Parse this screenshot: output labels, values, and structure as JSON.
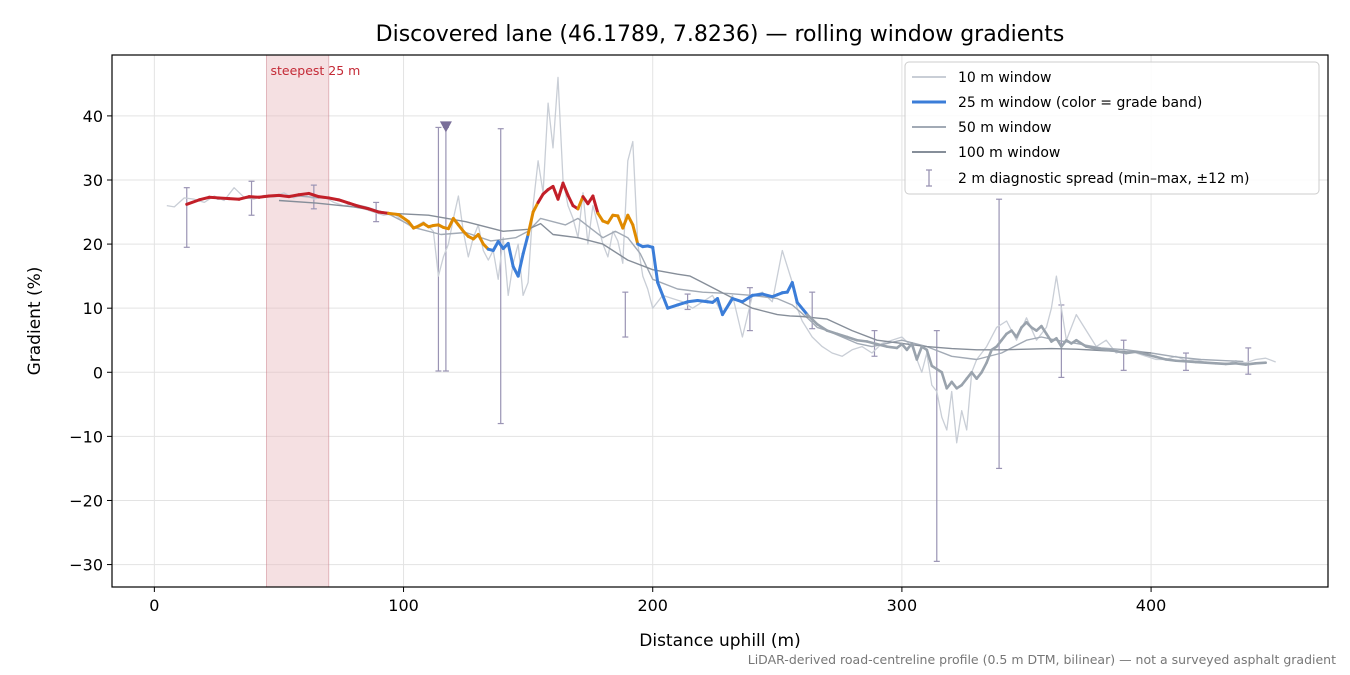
{
  "chart_data": {
    "type": "line",
    "title": "Discovered lane (46.1789, 7.8236) — rolling window gradients",
    "xlabel": "Distance uphill (m)",
    "ylabel": "Gradient (%)",
    "xlim": [
      -17,
      471
    ],
    "ylim": [
      -33.5,
      49.5
    ],
    "xticks": [
      0,
      100,
      200,
      300,
      400
    ],
    "yticks": [
      -30,
      -20,
      -10,
      0,
      10,
      20,
      30,
      40
    ],
    "xtick_labels": [
      "0",
      "100",
      "200",
      "300",
      "400"
    ],
    "ytick_labels": [
      "−30",
      "−20",
      "−10",
      "0",
      "10",
      "20",
      "30",
      "40"
    ],
    "grid": true,
    "legend_position": "top-right",
    "footnote": "LiDAR-derived road-centreline profile (0.5 m DTM, bilinear) — not a surveyed asphalt gradient",
    "highlight": {
      "label": "steepest 25 m",
      "x_start": 45,
      "x_end": 70,
      "color": "#e8b4bb"
    },
    "marker": {
      "x": 117,
      "y": 38.2,
      "shape": "triangle-down",
      "color": "#7a6f9a"
    },
    "grade_band_colors": {
      "high": "#c21f28",
      "mid": "#e08a00",
      "low": "#3b7dd8",
      "flat": "#9aa3ad"
    },
    "series": [
      {
        "name": "10 m window",
        "color": "#c9ced6",
        "x": [
          5,
          8,
          12,
          16,
          20,
          24,
          28,
          32,
          36,
          40,
          44,
          48,
          52,
          56,
          60,
          64,
          68,
          72,
          76,
          80,
          84,
          88,
          92,
          96,
          100,
          104,
          108,
          112,
          114,
          116,
          118,
          120,
          122,
          124,
          126,
          128,
          130,
          132,
          134,
          136,
          138,
          140,
          142,
          144,
          146,
          148,
          150,
          152,
          154,
          156,
          158,
          160,
          162,
          164,
          166,
          168,
          170,
          172,
          174,
          176,
          178,
          180,
          182,
          184,
          186,
          188,
          190,
          192,
          194,
          196,
          198,
          200,
          204,
          208,
          212,
          216,
          220,
          224,
          228,
          232,
          236,
          240,
          244,
          248,
          252,
          256,
          258,
          260,
          264,
          268,
          272,
          276,
          280,
          284,
          288,
          292,
          296,
          300,
          304,
          306,
          308,
          310,
          312,
          314,
          316,
          318,
          320,
          322,
          324,
          326,
          328,
          330,
          334,
          338,
          342,
          346,
          350,
          354,
          358,
          360,
          362,
          366,
          370,
          374,
          378,
          382,
          386,
          390,
          394,
          398,
          402,
          406,
          410,
          414,
          418,
          422,
          426,
          430,
          434,
          438,
          442,
          446,
          450
        ],
        "values": [
          26.0,
          25.8,
          27.2,
          27.0,
          26.5,
          27.5,
          26.8,
          28.8,
          27.3,
          27.0,
          27.6,
          27.4,
          28.0,
          27.2,
          27.8,
          27.0,
          27.4,
          26.5,
          26.0,
          26.2,
          25.5,
          25.0,
          24.5,
          24.8,
          23.5,
          22.5,
          23.5,
          22.0,
          15.0,
          18.0,
          20.0,
          24.0,
          27.5,
          22.0,
          18.0,
          21.0,
          23.0,
          19.0,
          17.5,
          19.0,
          14.5,
          21.0,
          12.0,
          17.0,
          20.0,
          12.0,
          14.0,
          26.0,
          33.0,
          28.0,
          42.0,
          35.0,
          46.0,
          30.0,
          26.0,
          24.0,
          21.0,
          28.0,
          20.0,
          26.0,
          23.0,
          20.0,
          18.0,
          22.0,
          20.5,
          17.0,
          33.0,
          36.0,
          20.0,
          15.0,
          13.0,
          10.0,
          12.0,
          11.5,
          11.0,
          10.0,
          11.0,
          12.0,
          9.0,
          12.0,
          5.5,
          12.0,
          12.5,
          11.0,
          19.0,
          14.0,
          10.0,
          8.0,
          5.5,
          4.0,
          3.0,
          2.5,
          3.5,
          4.0,
          3.0,
          4.5,
          5.0,
          5.5,
          4.0,
          2.0,
          0.0,
          3.0,
          -2.0,
          -3.0,
          -7.0,
          -9.0,
          -3.0,
          -11.0,
          -6.0,
          -9.0,
          0.0,
          2.0,
          4.0,
          7.0,
          8.0,
          5.0,
          8.5,
          5.0,
          7.0,
          10.0,
          15.0,
          5.0,
          9.0,
          6.5,
          4.0,
          5.0,
          3.0,
          3.5,
          3.0,
          2.5,
          2.0,
          2.0,
          2.5,
          1.8,
          2.0,
          1.5,
          1.5,
          1.2,
          1.8,
          1.5,
          2.0,
          2.2,
          1.6
        ]
      },
      {
        "name": "25 m window (color = grade band)",
        "color": "#3b7dd8",
        "x": [
          13,
          18,
          22,
          26,
          30,
          34,
          38,
          42,
          46,
          50,
          54,
          58,
          62,
          66,
          70,
          74,
          78,
          82,
          86,
          90,
          94,
          98,
          102,
          104,
          106,
          108,
          110,
          112,
          114,
          116,
          118,
          120,
          122,
          124,
          126,
          128,
          130,
          132,
          134,
          136,
          138,
          140,
          142,
          144,
          146,
          148,
          150,
          152,
          154,
          156,
          158,
          160,
          162,
          164,
          166,
          168,
          170,
          172,
          174,
          176,
          178,
          180,
          182,
          184,
          186,
          188,
          190,
          192,
          194,
          196,
          198,
          200,
          202,
          206,
          210,
          214,
          218,
          222,
          224,
          226,
          228,
          232,
          236,
          240,
          244,
          248,
          250,
          252,
          254,
          256,
          258,
          262,
          266,
          270,
          274,
          278,
          282,
          286,
          290,
          294,
          298,
          300,
          302,
          304,
          306,
          308,
          310,
          312,
          314,
          316,
          318,
          320,
          322,
          324,
          326,
          328,
          330,
          332,
          334,
          336,
          338,
          340,
          342,
          344,
          346,
          348,
          350,
          352,
          354,
          356,
          358,
          360,
          362,
          364,
          366,
          368,
          370,
          374,
          378,
          382,
          386,
          390,
          394,
          398,
          402,
          406,
          410,
          414,
          418,
          422,
          426,
          430,
          434,
          438,
          442,
          446
        ],
        "values": [
          26.2,
          26.9,
          27.3,
          27.2,
          27.1,
          27.0,
          27.4,
          27.3,
          27.5,
          27.6,
          27.4,
          27.7,
          27.9,
          27.4,
          27.2,
          26.9,
          26.4,
          25.9,
          25.5,
          25.0,
          24.8,
          24.6,
          23.5,
          22.5,
          22.8,
          23.2,
          22.7,
          22.9,
          23.0,
          22.6,
          22.4,
          24.0,
          23.0,
          22.0,
          21.2,
          20.8,
          21.5,
          20.0,
          19.2,
          19.0,
          20.4,
          19.3,
          20.1,
          16.5,
          15.0,
          18.5,
          21.5,
          25.0,
          26.5,
          27.8,
          28.5,
          29.0,
          27.0,
          29.5,
          27.6,
          26.0,
          25.5,
          27.4,
          26.3,
          27.5,
          24.8,
          23.6,
          23.3,
          24.5,
          24.4,
          22.5,
          24.5,
          23.0,
          20.0,
          19.6,
          19.7,
          19.5,
          14.0,
          10.0,
          10.5,
          11.0,
          11.2,
          11.0,
          10.9,
          11.5,
          9.0,
          11.5,
          11.0,
          12.0,
          12.2,
          11.8,
          12.1,
          12.4,
          12.5,
          14.0,
          10.9,
          9.0,
          7.5,
          6.5,
          6.0,
          5.5,
          5.0,
          4.8,
          4.4,
          4.0,
          3.8,
          4.4,
          3.5,
          4.5,
          2.0,
          4.0,
          3.5,
          1.0,
          0.5,
          0.0,
          -2.5,
          -1.5,
          -2.5,
          -2.0,
          -1.0,
          0.0,
          -1.0,
          0.0,
          1.5,
          3.5,
          4.0,
          5.0,
          6.0,
          6.5,
          5.5,
          7.0,
          7.8,
          7.0,
          6.5,
          7.2,
          6.0,
          4.8,
          5.3,
          4.0,
          5.0,
          4.5,
          5.0,
          4.0,
          3.7,
          3.5,
          3.3,
          3.0,
          3.2,
          2.8,
          2.4,
          2.0,
          1.8,
          1.7,
          1.6,
          1.5,
          1.4,
          1.3,
          1.4,
          1.2,
          1.4,
          1.5
        ],
        "band_labels": [
          "high",
          "high",
          "high",
          "high",
          "high",
          "high",
          "high",
          "high",
          "high",
          "high",
          "high",
          "high",
          "high",
          "high",
          "high",
          "high",
          "high",
          "high",
          "high",
          "high",
          "mid",
          "mid",
          "mid",
          "mid",
          "mid",
          "mid",
          "mid",
          "mid",
          "mid",
          "mid",
          "mid",
          "mid",
          "mid",
          "mid",
          "mid",
          "mid",
          "mid",
          "mid",
          "low",
          "low",
          "low",
          "low",
          "low",
          "low",
          "low",
          "low",
          "mid",
          "mid",
          "high",
          "high",
          "high",
          "high",
          "high",
          "high",
          "high",
          "high",
          "mid",
          "high",
          "high",
          "high",
          "mid",
          "mid",
          "mid",
          "mid",
          "mid",
          "mid",
          "mid",
          "mid",
          "low",
          "low",
          "low",
          "low",
          "low",
          "low",
          "low",
          "low",
          "low",
          "low",
          "low",
          "low",
          "low",
          "low",
          "low",
          "low",
          "low",
          "low",
          "low",
          "low",
          "low",
          "low",
          "low",
          "flat",
          "flat",
          "flat",
          "flat",
          "flat",
          "flat",
          "flat",
          "flat",
          "flat",
          "flat",
          "flat",
          "flat",
          "flat",
          "flat",
          "flat",
          "flat",
          "flat",
          "flat",
          "flat",
          "flat",
          "flat",
          "flat",
          "flat",
          "flat",
          "flat",
          "flat",
          "flat",
          "flat",
          "flat",
          "flat",
          "flat",
          "flat",
          "flat",
          "flat",
          "flat",
          "flat",
          "flat",
          "flat",
          "flat",
          "flat",
          "flat",
          "flat",
          "flat",
          "flat",
          "flat",
          "flat",
          "flat",
          "flat",
          "flat",
          "flat",
          "flat",
          "flat",
          "flat",
          "flat",
          "flat",
          "flat",
          "flat",
          "flat",
          "flat",
          "flat",
          "flat",
          "flat",
          "flat",
          "flat",
          "flat",
          "flat",
          "flat"
        ]
      },
      {
        "name": "50 m window",
        "color": "#a2aab5",
        "x": [
          25,
          40,
          55,
          70,
          85,
          95,
          105,
          115,
          125,
          135,
          145,
          150,
          155,
          160,
          165,
          170,
          175,
          180,
          185,
          190,
          195,
          200,
          210,
          220,
          230,
          240,
          250,
          256,
          262,
          266,
          270,
          276,
          282,
          288,
          294,
          300,
          310,
          320,
          330,
          340,
          350,
          356,
          362,
          370,
          380,
          390,
          400,
          410,
          420,
          430,
          437
        ],
        "values": [
          27.0,
          27.2,
          27.6,
          27.1,
          25.8,
          24.5,
          22.5,
          21.5,
          21.8,
          20.5,
          21.0,
          22.0,
          24.0,
          23.5,
          23.0,
          24.0,
          22.5,
          21.0,
          22.0,
          21.0,
          18.5,
          14.5,
          13.0,
          12.5,
          12.3,
          12.0,
          11.5,
          10.5,
          8.5,
          7.0,
          6.5,
          5.5,
          4.5,
          4.0,
          4.5,
          5.0,
          4.0,
          2.5,
          2.0,
          3.0,
          5.0,
          5.5,
          5.0,
          4.5,
          3.8,
          3.5,
          3.0,
          2.4,
          2.0,
          1.8,
          1.7
        ]
      },
      {
        "name": "100 m window",
        "color": "#868e99",
        "x": [
          50,
          65,
          80,
          95,
          110,
          125,
          140,
          150,
          155,
          160,
          170,
          180,
          190,
          200,
          210,
          215,
          220,
          230,
          240,
          250,
          255,
          260,
          265,
          270,
          280,
          290,
          300,
          310,
          320,
          330,
          340,
          350,
          360,
          370,
          380,
          390,
          400
        ],
        "values": [
          26.8,
          26.4,
          25.8,
          24.8,
          24.5,
          23.5,
          22.0,
          22.3,
          23.2,
          21.5,
          21.0,
          20.0,
          17.5,
          16.0,
          15.3,
          15.0,
          14.0,
          12.0,
          10.0,
          9.0,
          8.8,
          8.7,
          8.5,
          8.3,
          6.5,
          5.0,
          4.5,
          4.0,
          3.7,
          3.5,
          3.5,
          3.6,
          3.7,
          3.6,
          3.4,
          3.2,
          3.0
        ]
      }
    ],
    "error_bars": {
      "name": "2 m diagnostic spread (min–max, ±12 m)",
      "color": "#9a94b4",
      "points": [
        {
          "x": 13,
          "y": 26.2,
          "min": 19.5,
          "max": 28.8
        },
        {
          "x": 39,
          "y": 27.4,
          "min": 24.5,
          "max": 29.8
        },
        {
          "x": 64,
          "y": 27.9,
          "min": 25.5,
          "max": 29.2
        },
        {
          "x": 89,
          "y": 25.0,
          "min": 23.5,
          "max": 26.5
        },
        {
          "x": 114,
          "y": 23.0,
          "min": 0.2,
          "max": 38.2
        },
        {
          "x": 117,
          "y": 22.5,
          "min": 0.2,
          "max": 38.2
        },
        {
          "x": 139,
          "y": 19.5,
          "min": -8.0,
          "max": 38.0
        },
        {
          "x": 189,
          "y": 10.0,
          "min": 5.5,
          "max": 12.5
        },
        {
          "x": 214,
          "y": 11.0,
          "min": 9.8,
          "max": 12.2
        },
        {
          "x": 239,
          "y": 11.5,
          "min": 6.5,
          "max": 13.2
        },
        {
          "x": 264,
          "y": 10.0,
          "min": 6.8,
          "max": 12.5
        },
        {
          "x": 289,
          "y": 5.0,
          "min": 2.5,
          "max": 6.5
        },
        {
          "x": 314,
          "y": 2.0,
          "min": -29.5,
          "max": 6.5
        },
        {
          "x": 339,
          "y": 3.0,
          "min": -15.0,
          "max": 27.0
        },
        {
          "x": 364,
          "y": 5.0,
          "min": -0.8,
          "max": 10.5
        },
        {
          "x": 389,
          "y": 4.0,
          "min": 0.3,
          "max": 5.0
        },
        {
          "x": 414,
          "y": 2.0,
          "min": 0.3,
          "max": 3.0
        },
        {
          "x": 439,
          "y": 1.5,
          "min": -0.3,
          "max": 3.8
        }
      ]
    }
  }
}
